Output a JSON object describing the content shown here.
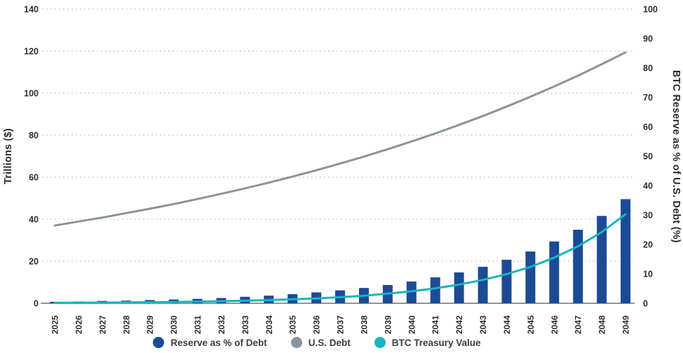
{
  "chart_data": {
    "type": "bar",
    "subtype": "combo-bar-line",
    "title": "",
    "categories": [
      "2025",
      "2026",
      "2027",
      "2028",
      "2029",
      "2030",
      "2031",
      "2032",
      "2033",
      "2034",
      "2035",
      "2036",
      "2037",
      "2038",
      "2039",
      "2040",
      "2041",
      "2042",
      "2043",
      "2044",
      "2045",
      "2046",
      "2047",
      "2048",
      "2049"
    ],
    "series": [
      {
        "name": "Reserve as % of Debt",
        "type": "bar",
        "axis": "right",
        "color": "#1c4b96",
        "values": [
          0.5,
          0.6,
          0.8,
          0.9,
          1.1,
          1.3,
          1.5,
          1.8,
          2.2,
          2.6,
          3.1,
          3.7,
          4.4,
          5.2,
          6.2,
          7.4,
          8.8,
          10.5,
          12.4,
          14.8,
          17.6,
          21.0,
          25.0,
          29.7,
          35.4
        ]
      },
      {
        "name": "U.S. Debt",
        "type": "line",
        "axis": "left",
        "color": "#8a949c",
        "values": [
          37.0,
          38.9,
          40.8,
          42.9,
          45.0,
          47.2,
          49.6,
          52.1,
          54.7,
          57.4,
          60.3,
          63.3,
          66.5,
          69.8,
          73.3,
          77.0,
          80.8,
          84.9,
          89.1,
          93.6,
          98.3,
          103.2,
          108.3,
          113.8,
          119.4
        ]
      },
      {
        "name": "BTC Treasury Value",
        "type": "line",
        "axis": "left",
        "color": "#17b4c2",
        "values": [
          0.2,
          0.3,
          0.3,
          0.4,
          0.5,
          0.6,
          0.8,
          1.0,
          1.2,
          1.5,
          1.9,
          2.3,
          2.9,
          3.6,
          4.6,
          5.7,
          7.1,
          8.9,
          11.1,
          13.9,
          17.3,
          21.7,
          27.1,
          33.9,
          42.4
        ]
      }
    ],
    "left_axis": {
      "label": "Trillions ($)",
      "min": 0,
      "max": 140,
      "ticks": [
        "0",
        "20",
        "40",
        "60",
        "80",
        "100",
        "120",
        "140"
      ]
    },
    "right_axis": {
      "label": "BTC Reserve as % of U.S. Debt (%)",
      "min": 0,
      "max": 100,
      "ticks": [
        "0",
        "10",
        "20",
        "30",
        "40",
        "50",
        "60",
        "70",
        "80",
        "90",
        "100"
      ]
    },
    "grid": "horizontal-dotted",
    "legend_position": "bottom"
  },
  "legend": {
    "items": [
      {
        "label": "Reserve as % of Debt",
        "color": "#1c4b96"
      },
      {
        "label": "U.S. Debt",
        "color": "#8a949c"
      },
      {
        "label": "BTC Treasury Value",
        "color": "#17b4c2"
      }
    ]
  },
  "colors": {
    "background": "#ffffff",
    "gridline": "#c6c6c6",
    "axis_line": "#8f9499",
    "tick_text": "#2e2e2e",
    "legend_text": "#3c3c3c"
  }
}
